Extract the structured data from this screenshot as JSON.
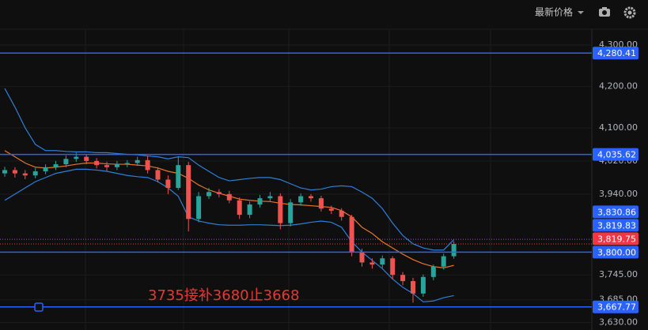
{
  "toolbar": {
    "price_mode": "最新价格"
  },
  "chart_data": {
    "type": "candlestick",
    "open": [
      3990,
      3998,
      3990,
      3985,
      3995,
      4005,
      4012,
      4025,
      4030,
      4020,
      4010,
      4005,
      4012,
      4015,
      4022,
      3998,
      3975,
      3955,
      4010,
      3880,
      3935,
      3945,
      3940,
      3925,
      3890,
      3915,
      3930,
      3935,
      3870,
      3920,
      3935,
      3930,
      3905,
      3900,
      3885,
      3800,
      3775,
      3770,
      3785,
      3745,
      3730,
      3700,
      3740,
      3765,
      3790
    ],
    "high": [
      4006,
      4005,
      3998,
      4003,
      4012,
      4020,
      4033,
      4040,
      4036,
      4027,
      4018,
      4020,
      4022,
      4030,
      4032,
      4005,
      3985,
      4030,
      4018,
      3945,
      3955,
      3952,
      3948,
      3932,
      3922,
      3938,
      3945,
      3942,
      3928,
      3942,
      3940,
      3936,
      3912,
      3906,
      3890,
      3808,
      3785,
      3792,
      3790,
      3752,
      3738,
      3746,
      3770,
      3796,
      3826
    ],
    "low": [
      3982,
      3980,
      3976,
      3978,
      3988,
      3998,
      4005,
      4018,
      4012,
      4002,
      3996,
      3998,
      4005,
      4008,
      3990,
      3968,
      3940,
      3950,
      3850,
      3872,
      3928,
      3932,
      3918,
      3880,
      3882,
      3908,
      3922,
      3855,
      3862,
      3912,
      3922,
      3898,
      3892,
      3876,
      3790,
      3765,
      3760,
      3762,
      3735,
      3720,
      3678,
      3692,
      3732,
      3758,
      3784
    ],
    "close": [
      3998,
      3990,
      3985,
      3995,
      4005,
      4012,
      4025,
      4030,
      4020,
      4010,
      4005,
      4012,
      4015,
      4022,
      3998,
      3975,
      3955,
      4010,
      3880,
      3935,
      3945,
      3940,
      3925,
      3890,
      3915,
      3930,
      3935,
      3870,
      3920,
      3935,
      3930,
      3905,
      3900,
      3885,
      3800,
      3775,
      3770,
      3785,
      3745,
      3730,
      3700,
      3740,
      3765,
      3790,
      3819.75
    ],
    "up_color": "#26a69a",
    "down_color": "#ef5350",
    "bands": {
      "color": "#2f7fd8",
      "middle_color": "#e8742a",
      "upper": [
        4195,
        4150,
        4100,
        4060,
        4045,
        4045,
        4043,
        4042,
        4042,
        4040,
        4040,
        4038,
        4036,
        4035,
        4032,
        4030,
        4025,
        4030,
        4028,
        4010,
        3995,
        3980,
        3972,
        3975,
        3978,
        3980,
        3980,
        3975,
        3965,
        3955,
        3950,
        3952,
        3958,
        3960,
        3958,
        3945,
        3930,
        3905,
        3870,
        3840,
        3820,
        3810,
        3805,
        3805,
        3830
      ],
      "middle": [
        4045,
        4030,
        4015,
        4005,
        4003,
        4005,
        4008,
        4012,
        4015,
        4015,
        4013,
        4012,
        4012,
        4010,
        4008,
        4003,
        3995,
        3990,
        3978,
        3962,
        3950,
        3942,
        3935,
        3928,
        3925,
        3923,
        3922,
        3918,
        3915,
        3914,
        3912,
        3910,
        3908,
        3900,
        3885,
        3860,
        3845,
        3825,
        3810,
        3795,
        3782,
        3772,
        3765,
        3762,
        3768
      ],
      "lower": [
        3925,
        3940,
        3955,
        3970,
        3980,
        3990,
        3995,
        4000,
        4000,
        3998,
        3995,
        3990,
        3985,
        3982,
        3980,
        3970,
        3955,
        3935,
        3885,
        3875,
        3870,
        3866,
        3865,
        3865,
        3866,
        3866,
        3865,
        3864,
        3865,
        3868,
        3872,
        3875,
        3872,
        3860,
        3825,
        3800,
        3780,
        3760,
        3735,
        3715,
        3700,
        3680,
        3682,
        3690,
        3695
      ]
    },
    "ylim": [
      3612,
      4338
    ],
    "yticks": [
      {
        "value": 4300,
        "label": "4,300.00"
      },
      {
        "value": 4200,
        "label": "4,200.00"
      },
      {
        "value": 4100,
        "label": "4,100.00"
      },
      {
        "value": 4020,
        "label": "4,020.00"
      },
      {
        "value": 3940,
        "label": "3,940.00"
      },
      {
        "value": 3745,
        "label": "3,745.00"
      },
      {
        "value": 3685,
        "label": "3,685.00"
      },
      {
        "value": 3630,
        "label": "3,630.00"
      }
    ],
    "grid": true,
    "levels": [
      {
        "value": 4280.41,
        "label": "4,280.41",
        "style": "solid",
        "color": "#2962ff"
      },
      {
        "value": 4035.62,
        "label": "4,035.62",
        "style": "solid",
        "color": "#2962ff"
      },
      {
        "value": 3830.86,
        "label": "3,830.86",
        "style": "dotted",
        "color": "#2962ff"
      },
      {
        "value": 3819.83,
        "label": "3,819.83",
        "style": "none",
        "color": "#2962ff"
      },
      {
        "value": 3819.75,
        "label": "3,819.75",
        "style": "dotted",
        "color": "#f23645"
      },
      {
        "value": 3800.0,
        "label": "3,800.00",
        "style": "solid",
        "color": "#2962ff"
      },
      {
        "value": 3667.77,
        "label": "3,667.77",
        "style": "solid",
        "color": "#2962ff"
      }
    ],
    "annotation": "3735接补3680止3668"
  }
}
